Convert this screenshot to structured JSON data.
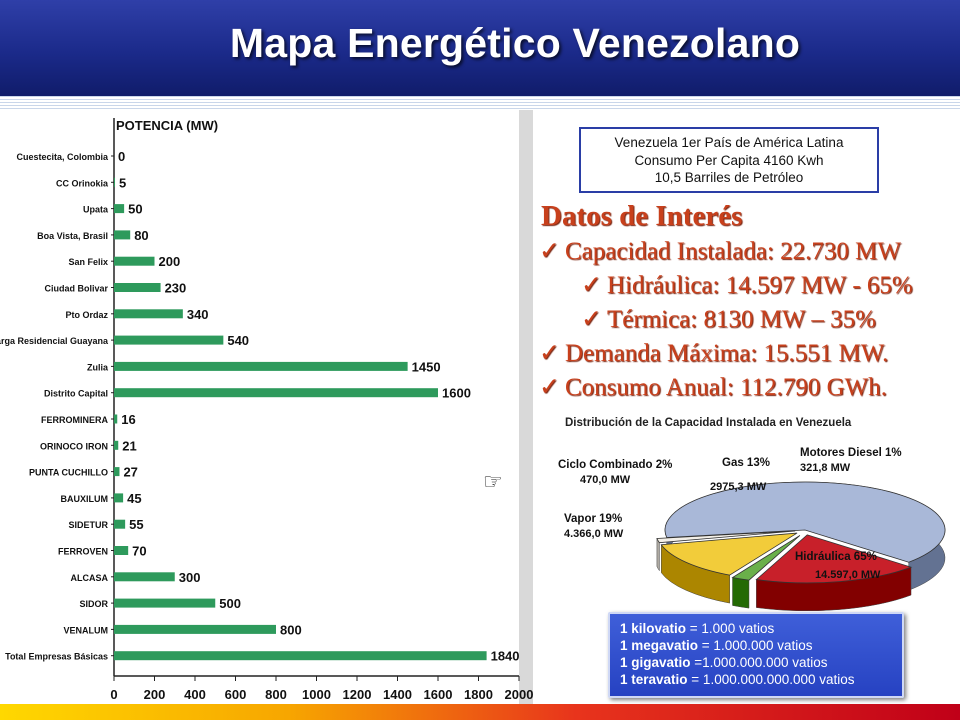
{
  "title": "Mapa Energético Venezolano",
  "info_box": {
    "lines": [
      "Venezuela 1er País de América Latina",
      "Consumo Per Capita 4160  Kwh",
      "10,5 Barriles de Petróleo"
    ]
  },
  "interest": {
    "title": "Datos de Interés",
    "items": [
      {
        "text": "Capacidad Instalada: 22.730 MW",
        "level": 1
      },
      {
        "text": "Hidráulica: 14.597 MW - 65%",
        "level": 2
      },
      {
        "text": "Térmica: 8130 MW – 35%",
        "level": 2
      },
      {
        "text": "Demanda Máxima: 15.551 MW.",
        "level": 1
      },
      {
        "text": "Consumo Anual: 112.790 GWh.",
        "level": 1
      }
    ]
  },
  "units": [
    {
      "term": "1 kilovatio",
      "value": " = 1.000 vatios"
    },
    {
      "term": "1 megavatio",
      "value": " = 1.000.000 vatios"
    },
    {
      "term": "1 gigavatio",
      "value": " =1.000.000.000 vatios"
    },
    {
      "term": "1 teravatio",
      "value": " = 1.000.000.000.000 vatios"
    }
  ],
  "icons": {
    "pointer": "pointing-hand-icon",
    "check": "check-mark-icon"
  },
  "colors": {
    "bar": "#2e9a5c",
    "title_bg": "#1b2a8a",
    "interest_text": "#c8401c",
    "units_bg": "#2a46c8"
  },
  "chart_data": [
    {
      "type": "bar",
      "orientation": "horizontal",
      "ylabel": "POTENCIA (MW)",
      "categories": [
        "Cuestecita, Colombia",
        "CC Orinokia",
        "Upata",
        "Boa Vista, Brasil",
        "San Felix",
        "Ciudad Bolivar",
        "Pto Ordaz",
        "Carga Residencial Guayana",
        "Zulia",
        "Distrito Capital",
        "FERROMINERA",
        "ORINOCO IRON",
        "PUNTA CUCHILLO",
        "BAUXILUM",
        "SIDETUR",
        "FERROVEN",
        "ALCASA",
        "SIDOR",
        "VENALUM",
        "Total Empresas Básicas"
      ],
      "values": [
        0,
        5,
        50,
        80,
        200,
        230,
        340,
        540,
        1450,
        1600,
        16,
        21,
        27,
        45,
        55,
        70,
        300,
        500,
        800,
        1840
      ],
      "value_labels": [
        "0",
        "5",
        "50",
        "80",
        "200",
        "230",
        "340",
        "540",
        "1450",
        "1600",
        "16",
        "21",
        "27",
        "45",
        "55",
        "70",
        "300",
        "500",
        "800",
        "1840"
      ],
      "xlim": [
        0,
        2000
      ],
      "xticks": [
        "0",
        "200",
        "400",
        "600",
        "800",
        "1000",
        "1200",
        "1400",
        "1600",
        "1800",
        "2000"
      ],
      "grid": false
    },
    {
      "type": "pie",
      "title": "Distribución de la Capacidad Instalada en Venezuela",
      "slices": [
        {
          "name": "Hidráulica 65%",
          "value_label": "14.597,0 MW",
          "value": 14597.0,
          "color": "#a9b8d8"
        },
        {
          "name": "Vapor 19%",
          "value_label": "4.366,0 MW",
          "value": 4366.0,
          "color": "#c8202a"
        },
        {
          "name": "Ciclo Combinado 2%",
          "value_label": "470,0 MW",
          "value": 470.0,
          "color": "#6ab04a"
        },
        {
          "name": "Gas 13%",
          "value_label": "2975,3 MW",
          "value": 2975.3,
          "color": "#f2cc3a"
        },
        {
          "name": "Motores Diesel 1%",
          "value_label": "321,8 MW",
          "value": 321.8,
          "color": "#f4f0e8"
        }
      ]
    }
  ]
}
